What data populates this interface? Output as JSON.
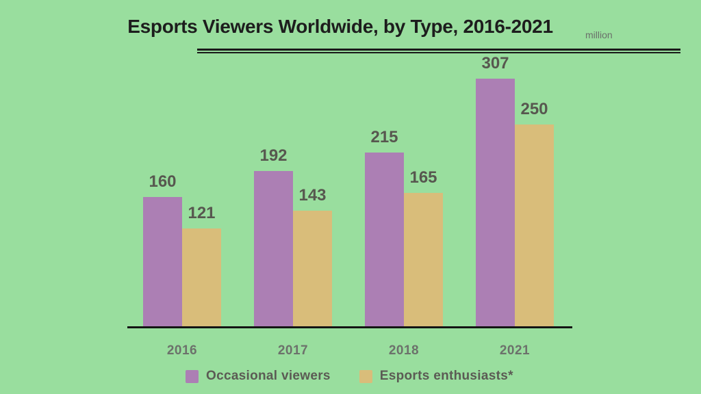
{
  "page": {
    "background": "#99de9e"
  },
  "header": {
    "title": "Esports Viewers Worldwide, by Type, 2016-2021",
    "unit_label": "million"
  },
  "chart_data": {
    "type": "bar",
    "title": "Esports Viewers Worldwide, by Type, 2016-2021",
    "unit": "million",
    "categories": [
      "2016",
      "2017",
      "2018",
      "2021"
    ],
    "series": [
      {
        "name": "Occasional viewers",
        "color": "#ac7fb4",
        "values": [
          160,
          192,
          215,
          307
        ]
      },
      {
        "name": "Esports enthusiasts*",
        "color": "#d9bd7a",
        "values": [
          121,
          143,
          165,
          250
        ]
      }
    ],
    "value_labels_shown": true,
    "grid": false,
    "legend_position": "bottom",
    "ylim": [
      0,
      330
    ],
    "colors": {
      "background": "#99de9e",
      "title": "#1d1d1d",
      "axis_line": "#141414",
      "value_label": "#57574f",
      "category_label": "#6c716b",
      "legend_text": "#5b5b54"
    }
  }
}
